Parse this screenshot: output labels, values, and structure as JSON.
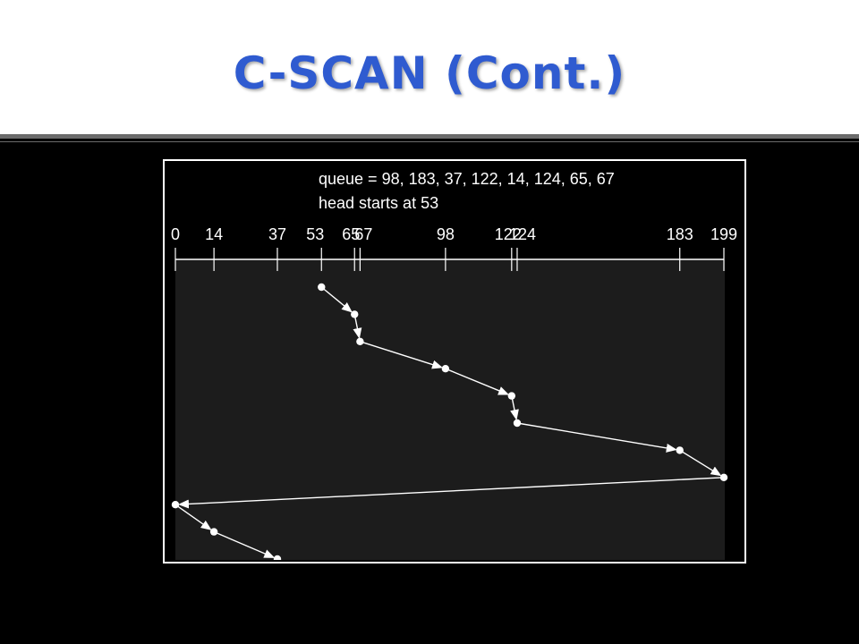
{
  "slide": {
    "title": "C-SCAN (Cont.)"
  },
  "diagram": {
    "queue_label": "queue = 98, 183, 37, 122, 14, 124, 65, 67",
    "head_label": "head starts at 53",
    "axis_min": 0,
    "axis_max": 199,
    "tick_values": [
      0,
      14,
      37,
      53,
      65,
      67,
      98,
      122,
      124,
      183,
      199
    ],
    "tick_labels": [
      "0",
      "14",
      "37",
      "53",
      "65",
      "67",
      "98",
      "122",
      "124",
      "183",
      "199"
    ],
    "service_order": [
      53,
      65,
      67,
      98,
      122,
      124,
      183,
      199,
      0,
      14,
      37
    ],
    "colors": {
      "background": "#000000",
      "plot_area": "#1c1c1c",
      "lines": "#ffffff",
      "title": "#2f5bd0"
    }
  }
}
